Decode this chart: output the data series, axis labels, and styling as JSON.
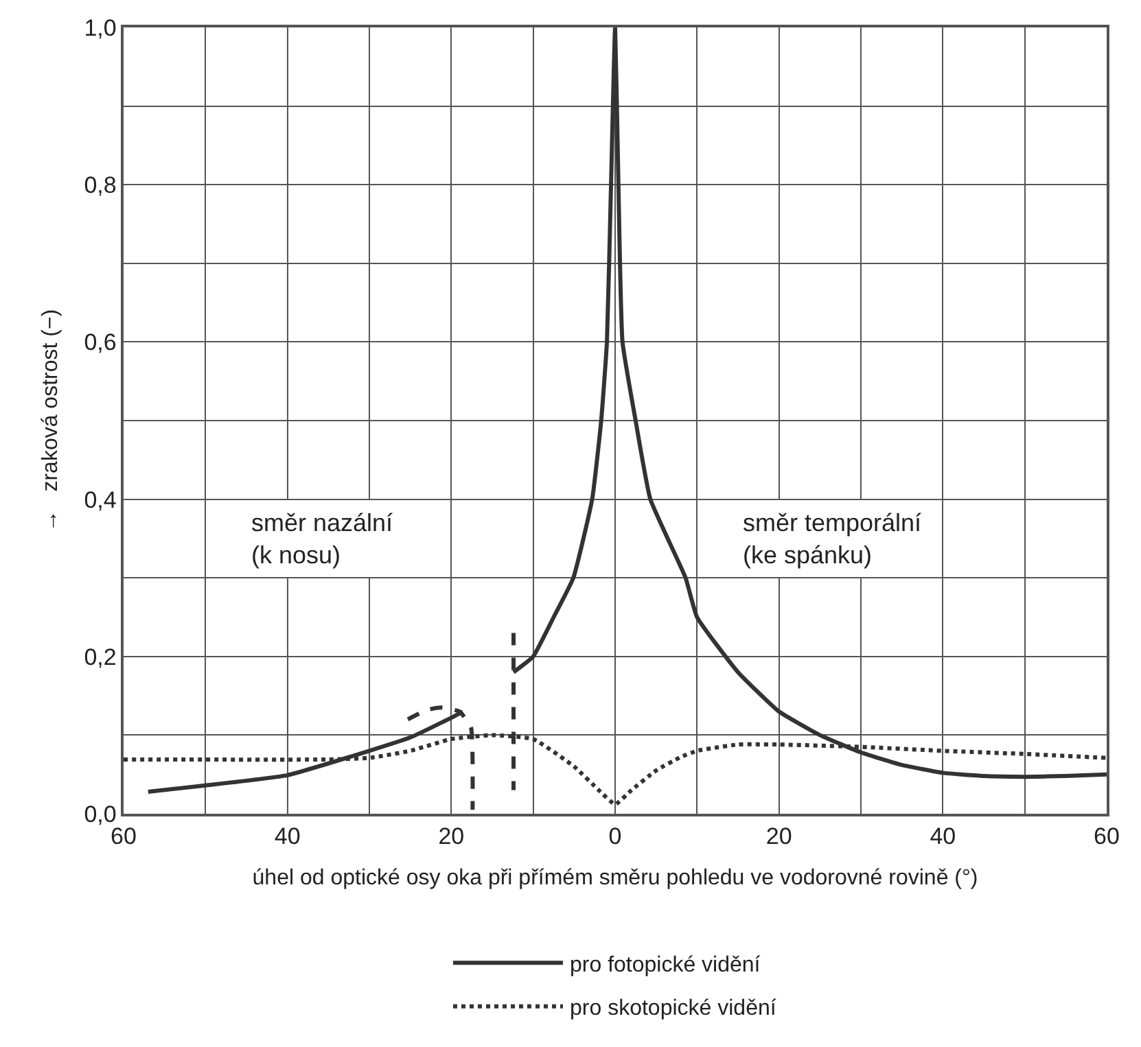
{
  "chart_data": {
    "type": "line",
    "xlabel": "úhel od optické osy oka při přímém směru pohledu ve vodorovné rovině (°)",
    "ylabel": "→   zraková ostrost (−)",
    "series": [
      {
        "name": "pro fotopické vidění",
        "color": "#333333",
        "line_style": "solid",
        "x": [
          -57,
          -50,
          -40,
          -30,
          -25,
          -20,
          -18.6,
          -15,
          -12.4,
          -10,
          -7.5,
          -5.1,
          -2.8,
          -1.7,
          -1,
          -0.5,
          0,
          0.4,
          0.9,
          2.5,
          4.3,
          8.6,
          10,
          15,
          20,
          25,
          30,
          35,
          40,
          45,
          50,
          55,
          60
        ],
        "values": [
          0.028,
          0.036,
          0.049,
          0.08,
          0.097,
          0.122,
          0.13,
          null,
          0.18,
          0.2,
          0.25,
          0.3,
          0.4,
          0.5,
          0.6,
          0.8,
          1.0,
          0.8,
          0.6,
          0.5,
          0.4,
          0.3,
          0.25,
          0.18,
          0.13,
          0.1,
          0.078,
          0.062,
          0.052,
          0.048,
          0.047,
          0.048,
          0.05
        ]
      },
      {
        "name": "pro skotopické vidění",
        "color": "#333333",
        "line_style": "dotted",
        "x": [
          -60,
          -35,
          -30,
          -25,
          -20,
          -15,
          -10,
          -5,
          -2,
          0,
          2,
          5,
          8,
          10,
          15,
          20,
          30,
          40,
          50,
          60
        ],
        "values": [
          0.069,
          0.069,
          0.071,
          0.08,
          0.095,
          0.1,
          0.095,
          0.06,
          0.03,
          0.012,
          0.03,
          0.055,
          0.072,
          0.08,
          0.088,
          0.088,
          0.085,
          0.08,
          0.076,
          0.071
        ]
      },
      {
        "color": "#333333",
        "line_style": "dashed",
        "x": [
          -25.3,
          -23,
          -21.3,
          -19,
          -17.6,
          -17.4
        ],
        "values": [
          0.12,
          0.132,
          0.135,
          0.13,
          0.11,
          0.005
        ]
      },
      {
        "color": "#333333",
        "line_style": "dashed",
        "x": [
          -12.4,
          -12.4
        ],
        "values": [
          0.23,
          0.03
        ]
      }
    ],
    "annotations": [
      "směr nazální\n(k nosu)",
      "směr temporální\n(ke spánku)"
    ],
    "xlim": [
      -60,
      60
    ],
    "xticks": [
      {
        "value": -60,
        "label": "60"
      },
      {
        "value": -40,
        "label": "40"
      },
      {
        "value": -20,
        "label": "20"
      },
      0,
      20,
      40,
      60
    ],
    "ylim": [
      0,
      1
    ],
    "yticks": [
      {
        "value": 0,
        "label": "0,0"
      },
      {
        "value": 0.2,
        "label": "0,2"
      },
      {
        "value": 0.4,
        "label": "0,4"
      },
      {
        "value": 0.6,
        "label": "0,6"
      },
      {
        "value": 0.8,
        "label": "0,8"
      },
      {
        "value": 1,
        "label": "1,0"
      }
    ],
    "grid": true,
    "legend": "bottom"
  }
}
